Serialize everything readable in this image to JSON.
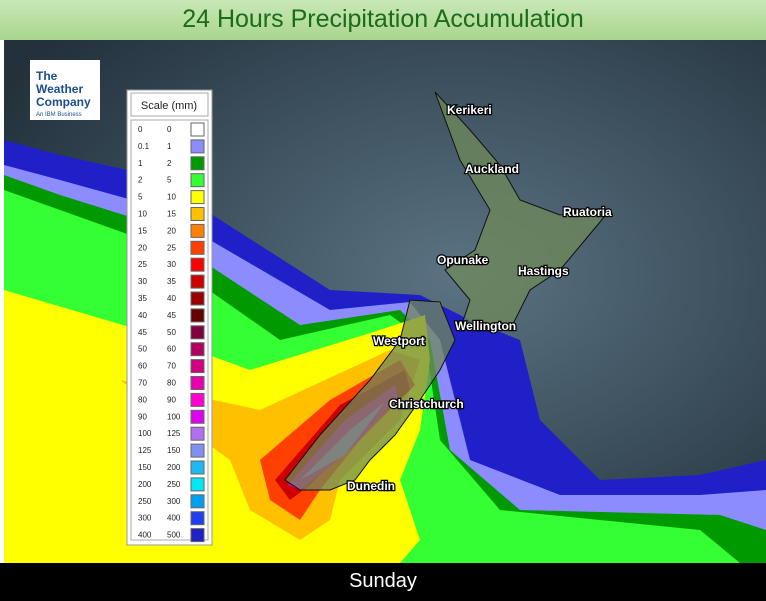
{
  "header": {
    "title": "24 Hours Precipitation Accumulation"
  },
  "logo": {
    "line1": "The",
    "line2": "Weather",
    "line3": "Company",
    "tagline": "An IBM Business"
  },
  "legend": {
    "title": "Scale (mm)",
    "rows": [
      {
        "from": 0,
        "to": 0,
        "color": "#ffffff"
      },
      {
        "from": 0.1,
        "to": 1,
        "color": "#8c8cff"
      },
      {
        "from": 1,
        "to": 2,
        "color": "#009a00"
      },
      {
        "from": 2,
        "to": 5,
        "color": "#33ff33"
      },
      {
        "from": 5,
        "to": 10,
        "color": "#ffff00"
      },
      {
        "from": 10,
        "to": 15,
        "color": "#ffc000"
      },
      {
        "from": 15,
        "to": 20,
        "color": "#ff8000"
      },
      {
        "from": 20,
        "to": 25,
        "color": "#ff4000"
      },
      {
        "from": 25,
        "to": 30,
        "color": "#ff0000"
      },
      {
        "from": 30,
        "to": 35,
        "color": "#cc0000"
      },
      {
        "from": 35,
        "to": 40,
        "color": "#990000"
      },
      {
        "from": 40,
        "to": 45,
        "color": "#660000"
      },
      {
        "from": 45,
        "to": 50,
        "color": "#800040"
      },
      {
        "from": 50,
        "to": 60,
        "color": "#b00060"
      },
      {
        "from": 60,
        "to": 70,
        "color": "#d00080"
      },
      {
        "from": 70,
        "to": 80,
        "color": "#e800b0"
      },
      {
        "from": 80,
        "to": 90,
        "color": "#ff00d0"
      },
      {
        "from": 90,
        "to": 100,
        "color": "#e000f0"
      },
      {
        "from": 100,
        "to": 125,
        "color": "#b070f0"
      },
      {
        "from": 125,
        "to": 150,
        "color": "#8090f0"
      },
      {
        "from": 150,
        "to": 200,
        "color": "#20b8f0"
      },
      {
        "from": 200,
        "to": 250,
        "color": "#00e8f8"
      },
      {
        "from": 250,
        "to": 300,
        "color": "#00a0f0"
      },
      {
        "from": 300,
        "to": 400,
        "color": "#2040f0"
      },
      {
        "from": 400,
        "to": 500,
        "color": "#2020c8"
      }
    ]
  },
  "cities": [
    "Kerikeri",
    "Auckland",
    "Ruatoria",
    "Opunake",
    "Hastings",
    "Wellington",
    "Westport",
    "Christchurch",
    "Dunedin"
  ],
  "footer": {
    "day": "Sunday"
  }
}
